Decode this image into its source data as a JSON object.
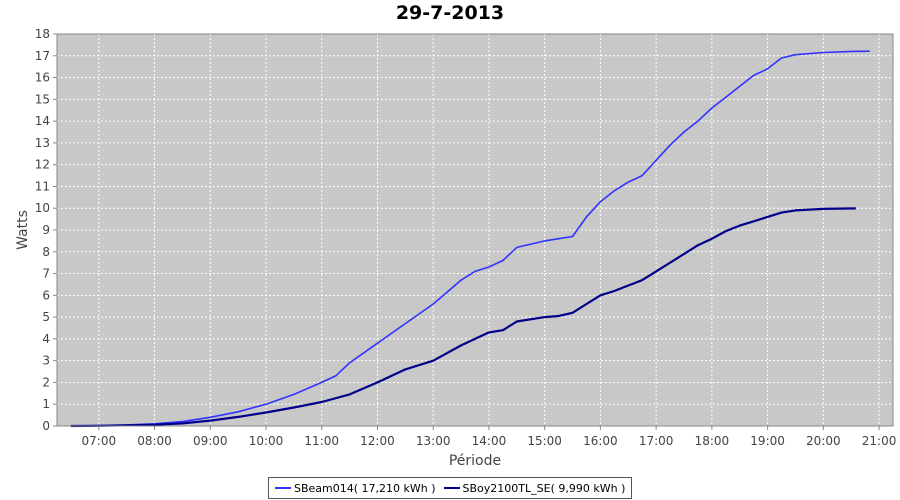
{
  "chart_data": {
    "type": "line",
    "title": "29-7-2013",
    "xlabel": "Période",
    "ylabel": "Watts",
    "x_ticks": [
      "07:00",
      "08:00",
      "09:00",
      "10:00",
      "11:00",
      "12:00",
      "13:00",
      "14:00",
      "15:00",
      "16:00",
      "17:00",
      "18:00",
      "19:00",
      "20:00",
      "21:00"
    ],
    "y_ticks": [
      0,
      1,
      2,
      3,
      4,
      5,
      6,
      7,
      8,
      9,
      10,
      11,
      12,
      13,
      14,
      15,
      16,
      17,
      18
    ],
    "xlim": [
      "06:15",
      "21:15"
    ],
    "ylim": [
      0,
      18
    ],
    "grid": true,
    "legend_position": "bottom",
    "background_color": "#c8c8c8",
    "series": [
      {
        "name": "SBeam014( 17,210 kWh )",
        "color": "#3333ff",
        "x": [
          "06:30",
          "07:00",
          "07:30",
          "08:00",
          "08:30",
          "09:00",
          "09:30",
          "10:00",
          "10:30",
          "11:00",
          "11:15",
          "11:30",
          "12:00",
          "12:30",
          "13:00",
          "13:30",
          "13:45",
          "14:00",
          "14:15",
          "14:30",
          "15:00",
          "15:15",
          "15:30",
          "15:45",
          "16:00",
          "16:15",
          "16:30",
          "16:45",
          "17:00",
          "17:15",
          "17:30",
          "17:45",
          "18:00",
          "18:15",
          "18:30",
          "18:45",
          "19:00",
          "19:15",
          "19:30",
          "20:00",
          "20:30",
          "20:50"
        ],
        "y": [
          0,
          0.02,
          0.05,
          0.1,
          0.2,
          0.4,
          0.65,
          1.0,
          1.45,
          2.0,
          2.3,
          2.9,
          3.8,
          4.7,
          5.6,
          6.7,
          7.1,
          7.3,
          7.6,
          8.2,
          8.5,
          8.6,
          8.7,
          9.6,
          10.3,
          10.8,
          11.2,
          11.5,
          12.2,
          12.9,
          13.5,
          14.0,
          14.6,
          15.1,
          15.6,
          16.1,
          16.4,
          16.9,
          17.05,
          17.15,
          17.2,
          17.21
        ]
      },
      {
        "name": "SBoy2100TL_SE( 9,990 kWh )",
        "color": "#00008b",
        "x": [
          "06:30",
          "07:00",
          "07:30",
          "08:00",
          "08:30",
          "09:00",
          "09:30",
          "10:00",
          "10:30",
          "11:00",
          "11:30",
          "12:00",
          "12:30",
          "13:00",
          "13:30",
          "14:00",
          "14:15",
          "14:30",
          "15:00",
          "15:15",
          "15:30",
          "15:45",
          "16:00",
          "16:15",
          "16:30",
          "16:45",
          "17:00",
          "17:15",
          "17:30",
          "17:45",
          "18:00",
          "18:15",
          "18:30",
          "18:45",
          "19:00",
          "19:15",
          "19:30",
          "20:00",
          "20:35"
        ],
        "y": [
          0,
          0.01,
          0.03,
          0.06,
          0.12,
          0.25,
          0.42,
          0.62,
          0.85,
          1.1,
          1.45,
          2.0,
          2.6,
          3.0,
          3.7,
          4.3,
          4.4,
          4.8,
          5.0,
          5.05,
          5.2,
          5.6,
          6.0,
          6.2,
          6.45,
          6.7,
          7.1,
          7.5,
          7.9,
          8.3,
          8.6,
          8.95,
          9.2,
          9.4,
          9.6,
          9.8,
          9.9,
          9.97,
          9.99
        ]
      }
    ]
  }
}
